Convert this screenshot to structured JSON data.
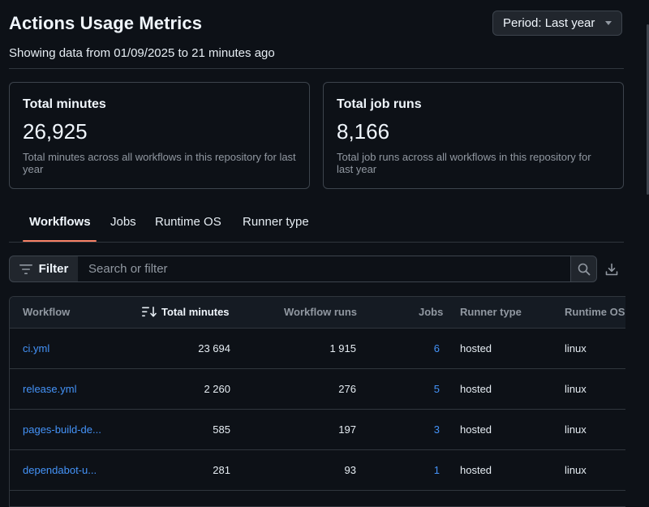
{
  "header": {
    "title": "Actions Usage Metrics",
    "period_label": "Period: Last year",
    "subtitle": "Showing data from 01/09/2025 to 21 minutes ago"
  },
  "cards": [
    {
      "title": "Total minutes",
      "value": "26,925",
      "description": "Total minutes across all workflows in this repository for last year"
    },
    {
      "title": "Total job runs",
      "value": "8,166",
      "description": "Total job runs across all workflows in this repository for last year"
    }
  ],
  "tabs": [
    {
      "label": "Workflows",
      "active": true
    },
    {
      "label": "Jobs",
      "active": false
    },
    {
      "label": "Runtime OS",
      "active": false
    },
    {
      "label": "Runner type",
      "active": false
    }
  ],
  "filter": {
    "button_label": "Filter",
    "placeholder": "Search or filter"
  },
  "table": {
    "columns": [
      "Workflow",
      "Total minutes",
      "Workflow runs",
      "Jobs",
      "Runner type",
      "Runtime OS"
    ],
    "sorted_column": "Total minutes",
    "rows": [
      {
        "workflow": "ci.yml",
        "total_minutes": "23 694",
        "workflow_runs": "1 915",
        "jobs": "6",
        "runner_type": "hosted",
        "runtime_os": "linux"
      },
      {
        "workflow": "release.yml",
        "total_minutes": "2 260",
        "workflow_runs": "276",
        "jobs": "5",
        "runner_type": "hosted",
        "runtime_os": "linux"
      },
      {
        "workflow": "pages-build-de...",
        "total_minutes": "585",
        "workflow_runs": "197",
        "jobs": "3",
        "runner_type": "hosted",
        "runtime_os": "linux"
      },
      {
        "workflow": "dependabot-u...",
        "total_minutes": "281",
        "workflow_runs": "93",
        "jobs": "1",
        "runner_type": "hosted",
        "runtime_os": "linux"
      }
    ]
  },
  "colors": {
    "background": "#0d1117",
    "link": "#4493f8",
    "tab_underline": "#f78166",
    "border": "#30363d"
  }
}
